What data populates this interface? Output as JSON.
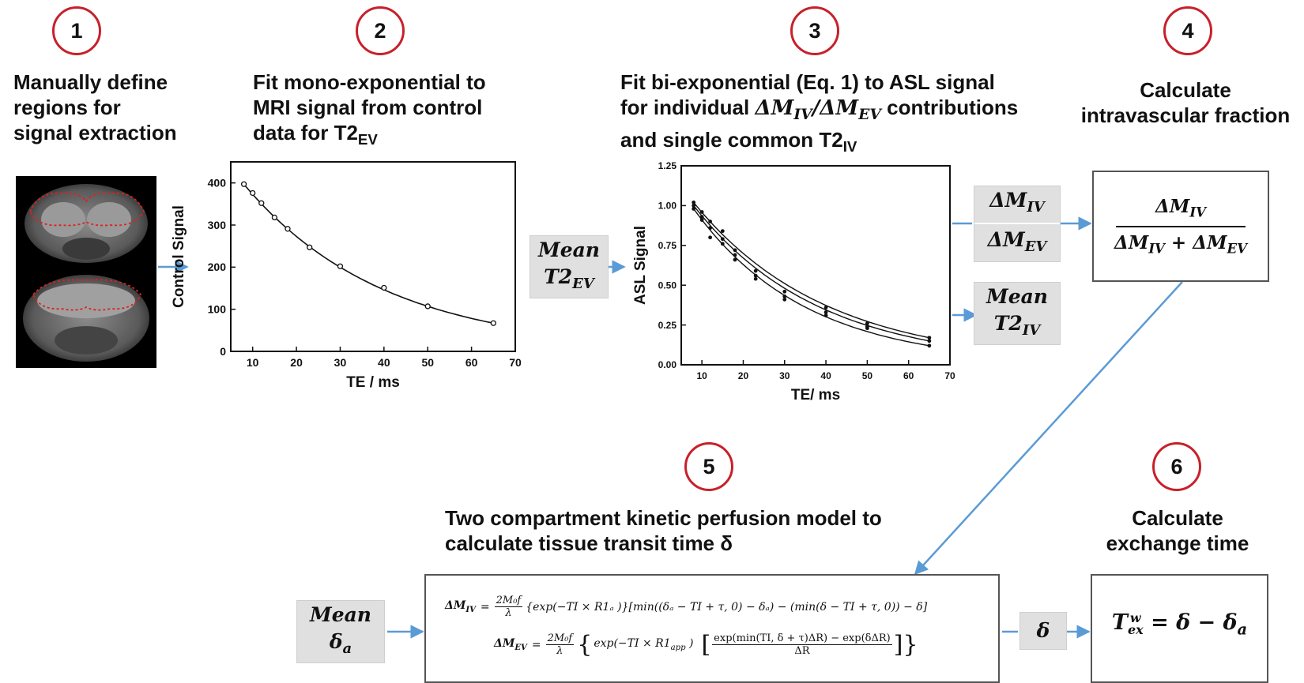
{
  "steps": {
    "s1": {
      "num": "1",
      "line1": "Manually define",
      "line2": "regions for",
      "line3": "signal extraction"
    },
    "s2": {
      "num": "2",
      "line1": "Fit mono-exponential to",
      "line2": "MRI signal from control",
      "line3": "data for T2",
      "line3_sub": "EV"
    },
    "s3": {
      "num": "3",
      "line1": "Fit bi-exponential (Eq. 1) to ASL signal",
      "line2a": "for individual",
      "line2_m1": "ΔM",
      "line2_m1_sub": "IV",
      "line2_slash": "/",
      "line2_m2": "ΔM",
      "line2_m2_sub": "EV",
      "line2b": "contributions",
      "line3": "and single common T2",
      "line3_sub": "IV"
    },
    "s4": {
      "num": "4",
      "line1": "Calculate",
      "line2": "intravascular fraction"
    },
    "s5": {
      "num": "5",
      "line1": "Two compartment kinetic perfusion model to",
      "line2": "calculate tissue transit time δ"
    },
    "s6": {
      "num": "6",
      "line1": "Calculate",
      "line2": "exchange time"
    }
  },
  "boxes": {
    "mean_t2ev": {
      "line1": "Mean",
      "line2": "T2",
      "sub": "EV"
    },
    "dm_iv": {
      "main": "ΔM",
      "sub": "IV"
    },
    "dm_ev": {
      "main": "ΔM",
      "sub": "EV"
    },
    "mean_t2iv": {
      "line1": "Mean",
      "line2": "T2",
      "sub": "IV"
    },
    "fraction": {
      "num": "ΔM",
      "num_sub": "IV",
      "den1": "ΔM",
      "den1_sub": "IV",
      "plus": "+",
      "den2": "ΔM",
      "den2_sub": "EV"
    },
    "mean_delta_a": {
      "line1": "Mean",
      "line2": "δ",
      "sub": "a"
    },
    "delta": {
      "label": "δ"
    },
    "tex": {
      "T": "T",
      "sup": "w",
      "sub": "ex",
      "rhs": "= δ  −  δ",
      "rhs_sub": "a"
    }
  },
  "equations": {
    "eq1_lhs": "ΔM",
    "eq1_lhs_sub": "IV",
    "eq1_frac_num": "2M₀f",
    "eq1_frac_den": "λ",
    "eq1_rhs": "{exp(−TI × R1ₐ )}[min((δₐ − TI + τ, 0) − δₐ) − (min(δ − TI + τ, 0)) − δ]",
    "eq2_lhs": "ΔM",
    "eq2_lhs_sub": "EV",
    "eq2_frac_num": "2M₀f",
    "eq2_frac_den": "λ",
    "eq2_exp": "exp(−TI × R1",
    "eq2_exp_sub": "app",
    "eq2_exp_close": " )",
    "eq2_inner_num": "exp(min(TI, δ + τ)ΔR) − exp(δΔR)",
    "eq2_inner_den": "ΔR"
  },
  "colors": {
    "step_ring": "#c8202a",
    "arrow": "#5b9bd5",
    "grey_box": "#e0e0e0",
    "roi_outline": "#e02020"
  },
  "chart_data": [
    {
      "type": "scatter",
      "title": "",
      "xlabel": "TE / ms",
      "ylabel": "Control Signal",
      "xlim": [
        5,
        70
      ],
      "ylim": [
        0,
        450
      ],
      "xticks": [
        10,
        20,
        30,
        40,
        50,
        60,
        70
      ],
      "yticks": [
        0,
        100,
        200,
        300,
        400
      ],
      "series": [
        {
          "x": [
            8,
            10,
            12,
            15,
            18,
            23,
            30,
            40,
            50,
            65
          ],
          "y": [
            397,
            376,
            352,
            318,
            291,
            247,
            202,
            151,
            107,
            67
          ]
        }
      ],
      "fit": "mono-exponential"
    },
    {
      "type": "scatter",
      "title": "",
      "xlabel": "TE/ ms",
      "ylabel": "ASL Signal",
      "xlim": [
        5,
        70
      ],
      "ylim": [
        0,
        1.25
      ],
      "xticks": [
        10,
        20,
        30,
        40,
        50,
        60,
        70
      ],
      "yticks": [
        "0.00",
        "0.25",
        "0.50",
        "0.75",
        "1.00",
        "1.25"
      ],
      "series": [
        {
          "x": [
            8,
            10,
            12,
            15,
            18,
            23,
            30,
            40,
            50,
            65
          ],
          "y": [
            1.02,
            0.96,
            0.9,
            0.84,
            0.72,
            0.59,
            0.46,
            0.36,
            0.26,
            0.17
          ]
        },
        {
          "x": [
            8,
            10,
            12,
            15,
            18,
            23,
            30,
            40,
            50,
            65
          ],
          "y": [
            1.0,
            0.93,
            0.86,
            0.79,
            0.69,
            0.56,
            0.43,
            0.33,
            0.24,
            0.15
          ]
        },
        {
          "x": [
            8,
            10,
            12,
            15,
            18,
            23,
            30,
            40,
            50,
            65
          ],
          "y": [
            0.98,
            0.91,
            0.8,
            0.76,
            0.66,
            0.54,
            0.41,
            0.31,
            0.23,
            0.12
          ]
        }
      ],
      "fit": "bi-exponential"
    }
  ]
}
